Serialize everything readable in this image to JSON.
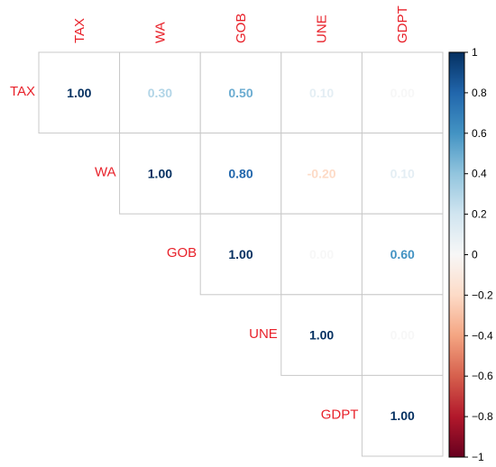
{
  "chart_data": {
    "type": "heatmap",
    "variables": [
      "TAX",
      "WA",
      "GOB",
      "UNE",
      "GDPT"
    ],
    "layout": "upper-triangle",
    "cells": [
      {
        "row": "TAX",
        "col": "TAX",
        "value": 1.0
      },
      {
        "row": "TAX",
        "col": "WA",
        "value": 0.3
      },
      {
        "row": "TAX",
        "col": "GOB",
        "value": 0.5
      },
      {
        "row": "TAX",
        "col": "UNE",
        "value": 0.1
      },
      {
        "row": "TAX",
        "col": "GDPT",
        "value": 0.0
      },
      {
        "row": "WA",
        "col": "WA",
        "value": 1.0
      },
      {
        "row": "WA",
        "col": "GOB",
        "value": 0.8
      },
      {
        "row": "WA",
        "col": "UNE",
        "value": -0.2
      },
      {
        "row": "WA",
        "col": "GDPT",
        "value": 0.1
      },
      {
        "row": "GOB",
        "col": "GOB",
        "value": 1.0
      },
      {
        "row": "GOB",
        "col": "UNE",
        "value": 0.0
      },
      {
        "row": "GOB",
        "col": "GDPT",
        "value": 0.6
      },
      {
        "row": "UNE",
        "col": "UNE",
        "value": 1.0
      },
      {
        "row": "UNE",
        "col": "GDPT",
        "value": 0.0
      },
      {
        "row": "GDPT",
        "col": "GDPT",
        "value": 1.0
      }
    ],
    "colorbar": {
      "range": [
        -1,
        1
      ],
      "ticks": [
        "1",
        "0.8",
        "0.6",
        "0.4",
        "0.2",
        "0",
        "−0.2",
        "−0.4",
        "−0.6",
        "−0.8",
        "−1"
      ],
      "tick_values": [
        1,
        0.8,
        0.6,
        0.4,
        0.2,
        0,
        -0.2,
        -0.4,
        -0.6,
        -0.8,
        -1
      ],
      "color_low": "#67001f",
      "color_high": "#053061"
    },
    "label_color": "#e8212a"
  }
}
